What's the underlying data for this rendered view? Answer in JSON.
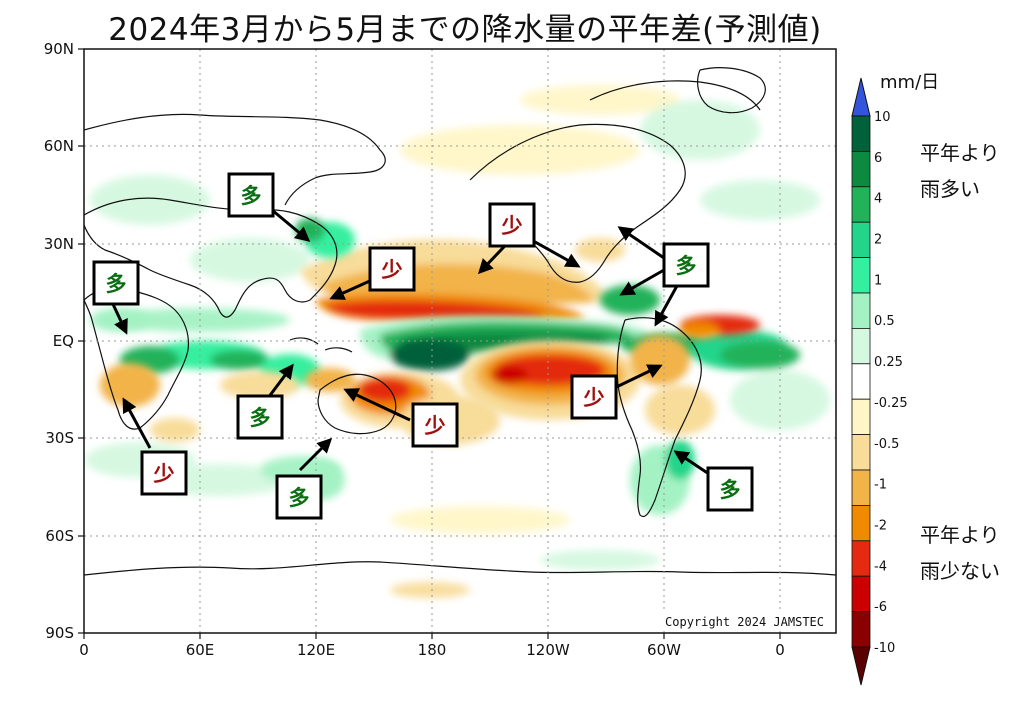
{
  "title": "2024年3月から5月までの降水量の平年差(予測値)",
  "map": {
    "lat_labels": [
      "90N",
      "60N",
      "30N",
      "EQ",
      "30S",
      "60S",
      "90S"
    ],
    "lon_labels": [
      "0",
      "60E",
      "120E",
      "180",
      "120W",
      "60W",
      "0"
    ],
    "copyright": "Copyright 2024 JAMSTEC"
  },
  "colorbar": {
    "unit": "mm/日",
    "labels": [
      "10",
      "6",
      "4",
      "2",
      "1",
      "0.5",
      "0.25",
      "-0.25",
      "-0.5",
      "-1",
      "-2",
      "-4",
      "-6",
      "-10"
    ],
    "colors": {
      "max_arrow": "#3355dd",
      "c1": "#00613a",
      "c2": "#0c8a3f",
      "c3": "#22b25a",
      "c4": "#22d58a",
      "c5": "#34ef9f",
      "c6": "#a4f2c4",
      "c7": "#d4f8e0",
      "c8": "#ffffff",
      "c9": "#fff6c8",
      "c10": "#f8dc9a",
      "c11": "#f2b349",
      "c12": "#f08a00",
      "c13": "#e42a10",
      "c14": "#cc0000",
      "c15": "#8a0000",
      "min_arrow": "#5a0000"
    },
    "wet_label_1": "平年より",
    "wet_label_2": "雨多い",
    "dry_label_1": "平年より",
    "dry_label_2": "雨少ない"
  },
  "annotations": {
    "wet_symbol": "多",
    "dry_symbol": "少",
    "wet_color": "#0a6e12",
    "dry_color": "#a01010"
  }
}
